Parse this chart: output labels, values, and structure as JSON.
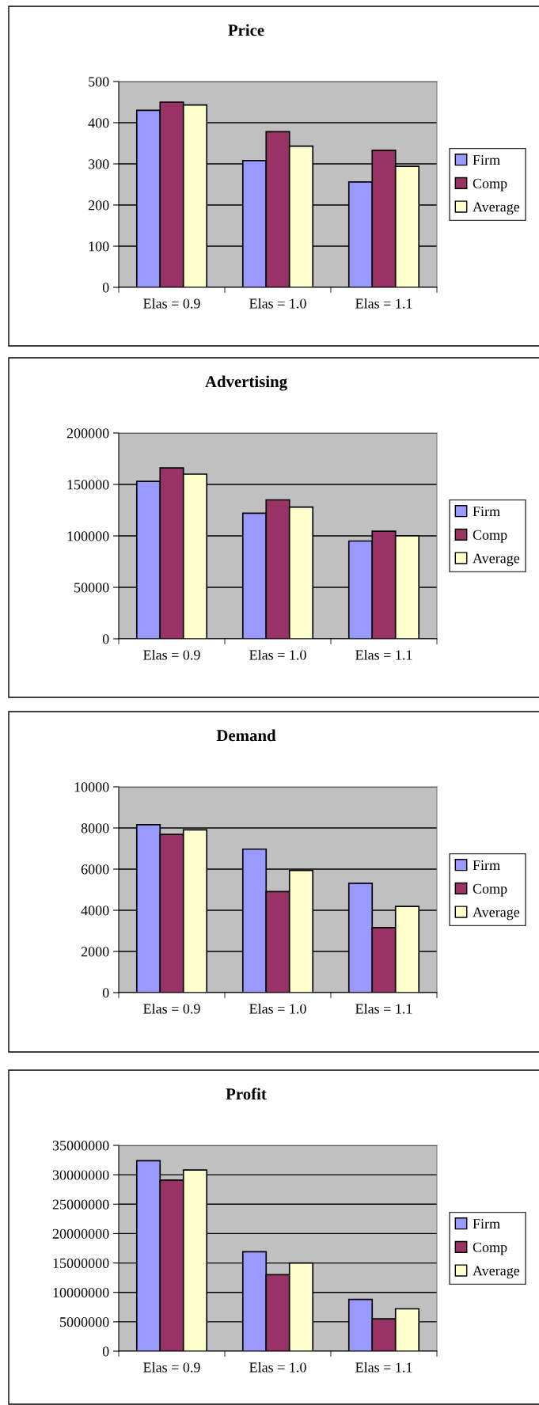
{
  "chart_data": [
    {
      "type": "bar",
      "title": "Price",
      "categories": [
        "Elas = 0.9",
        "Elas = 1.0",
        "Elas = 1.1"
      ],
      "ylim": [
        0,
        500
      ],
      "yticks": [
        0,
        100,
        200,
        300,
        400,
        500
      ],
      "grid": "y",
      "legend": "right",
      "series": [
        {
          "name": "Firm",
          "color": "#9999ff",
          "values": [
            430,
            308,
            256
          ]
        },
        {
          "name": "Comp",
          "color": "#993366",
          "values": [
            450,
            378,
            333
          ]
        },
        {
          "name": "Average",
          "color": "#ffffcc",
          "values": [
            443,
            343,
            294
          ]
        }
      ]
    },
    {
      "type": "bar",
      "title": "Advertising",
      "categories": [
        "Elas = 0.9",
        "Elas = 1.0",
        "Elas = 1.1"
      ],
      "ylim": [
        0,
        200000
      ],
      "yticks": [
        0,
        50000,
        100000,
        150000,
        200000
      ],
      "grid": "y",
      "legend": "right",
      "series": [
        {
          "name": "Firm",
          "color": "#9999ff",
          "values": [
            153000,
            122000,
            95000
          ]
        },
        {
          "name": "Comp",
          "color": "#993366",
          "values": [
            166000,
            135000,
            104500
          ]
        },
        {
          "name": "Average",
          "color": "#ffffcc",
          "values": [
            160000,
            128000,
            100000
          ]
        }
      ]
    },
    {
      "type": "bar",
      "title": "Demand",
      "categories": [
        "Elas = 0.9",
        "Elas = 1.0",
        "Elas = 1.1"
      ],
      "ylim": [
        0,
        10000
      ],
      "yticks": [
        0,
        2000,
        4000,
        6000,
        8000,
        10000
      ],
      "grid": "y",
      "legend": "right",
      "series": [
        {
          "name": "Firm",
          "color": "#9999ff",
          "values": [
            8160,
            6970,
            5310
          ]
        },
        {
          "name": "Comp",
          "color": "#993366",
          "values": [
            7690,
            4910,
            3160
          ]
        },
        {
          "name": "Average",
          "color": "#ffffcc",
          "values": [
            7910,
            5940,
            4190
          ]
        }
      ]
    },
    {
      "type": "bar",
      "title": "Profit",
      "categories": [
        "Elas = 0.9",
        "Elas = 1.0",
        "Elas = 1.1"
      ],
      "ylim": [
        0,
        35000000
      ],
      "yticks": [
        0,
        5000000,
        10000000,
        15000000,
        20000000,
        25000000,
        30000000,
        35000000
      ],
      "grid": "y",
      "legend": "right",
      "series": [
        {
          "name": "Firm",
          "color": "#9999ff",
          "values": [
            32400000,
            16900000,
            8800000
          ]
        },
        {
          "name": "Comp",
          "color": "#993366",
          "values": [
            29100000,
            13000000,
            5500000
          ]
        },
        {
          "name": "Average",
          "color": "#ffffcc",
          "values": [
            30800000,
            15000000,
            7200000
          ]
        }
      ]
    }
  ]
}
